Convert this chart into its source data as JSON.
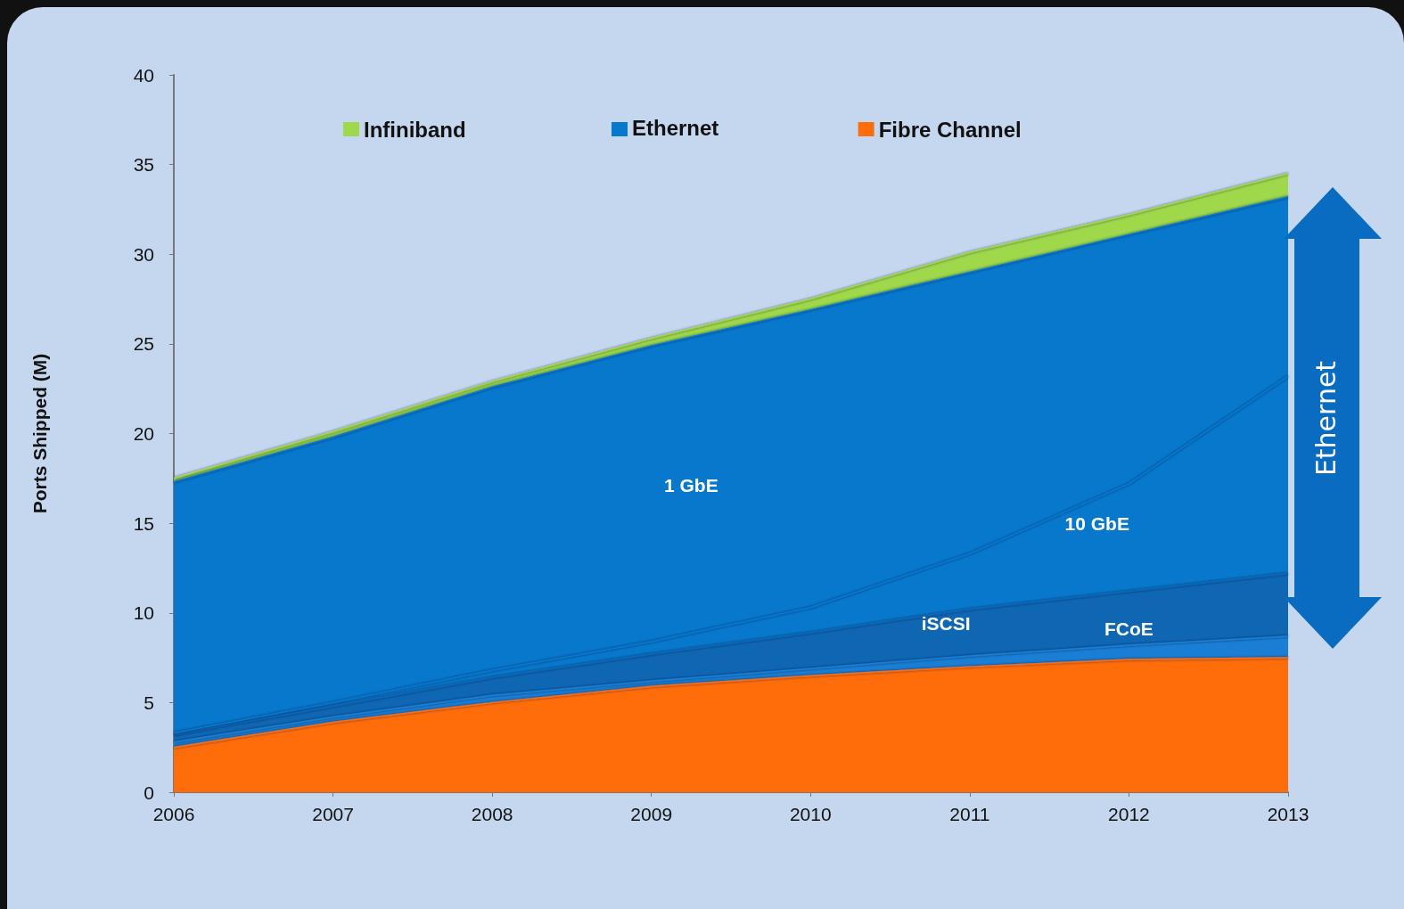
{
  "chart_data": {
    "type": "area",
    "stacked": true,
    "ylabel": "Ports Shipped (M)",
    "categories": [
      "2006",
      "2007",
      "2008",
      "2009",
      "2010",
      "2011",
      "2012",
      "2013"
    ],
    "ylim": [
      0,
      40
    ],
    "yticks": [
      0,
      5,
      10,
      15,
      20,
      25,
      30,
      35,
      40
    ],
    "grid": false,
    "legend": "top",
    "series": [
      {
        "name": "Fibre Channel",
        "color": "#ff6d0a",
        "values": [
          2.5,
          3.9,
          5.0,
          5.9,
          6.5,
          7.0,
          7.4,
          7.5
        ]
      },
      {
        "name": "FCoE",
        "color": "#1a7fd4",
        "values": [
          0.3,
          0.3,
          0.4,
          0.3,
          0.4,
          0.6,
          0.8,
          1.2
        ]
      },
      {
        "name": "iSCSI",
        "color": "#0f67b4",
        "values": [
          0.4,
          0.6,
          1.0,
          1.5,
          2.0,
          2.6,
          3.0,
          3.5
        ]
      },
      {
        "name": "10 GbE",
        "color": "#0878cc",
        "values": [
          0.1,
          0.2,
          0.4,
          0.7,
          1.4,
          3.1,
          6.0,
          11.0
        ]
      },
      {
        "name": "1 GbE",
        "color": "#0878cc",
        "values": [
          14.0,
          14.8,
          15.8,
          16.5,
          16.6,
          15.7,
          13.9,
          10.0
        ]
      },
      {
        "name": "Infiniband",
        "color": "#9fd84a",
        "values": [
          0.2,
          0.3,
          0.3,
          0.4,
          0.6,
          1.1,
          1.1,
          1.3
        ]
      }
    ],
    "annotations": [
      "Ethernet",
      "Ethernet"
    ]
  }
}
